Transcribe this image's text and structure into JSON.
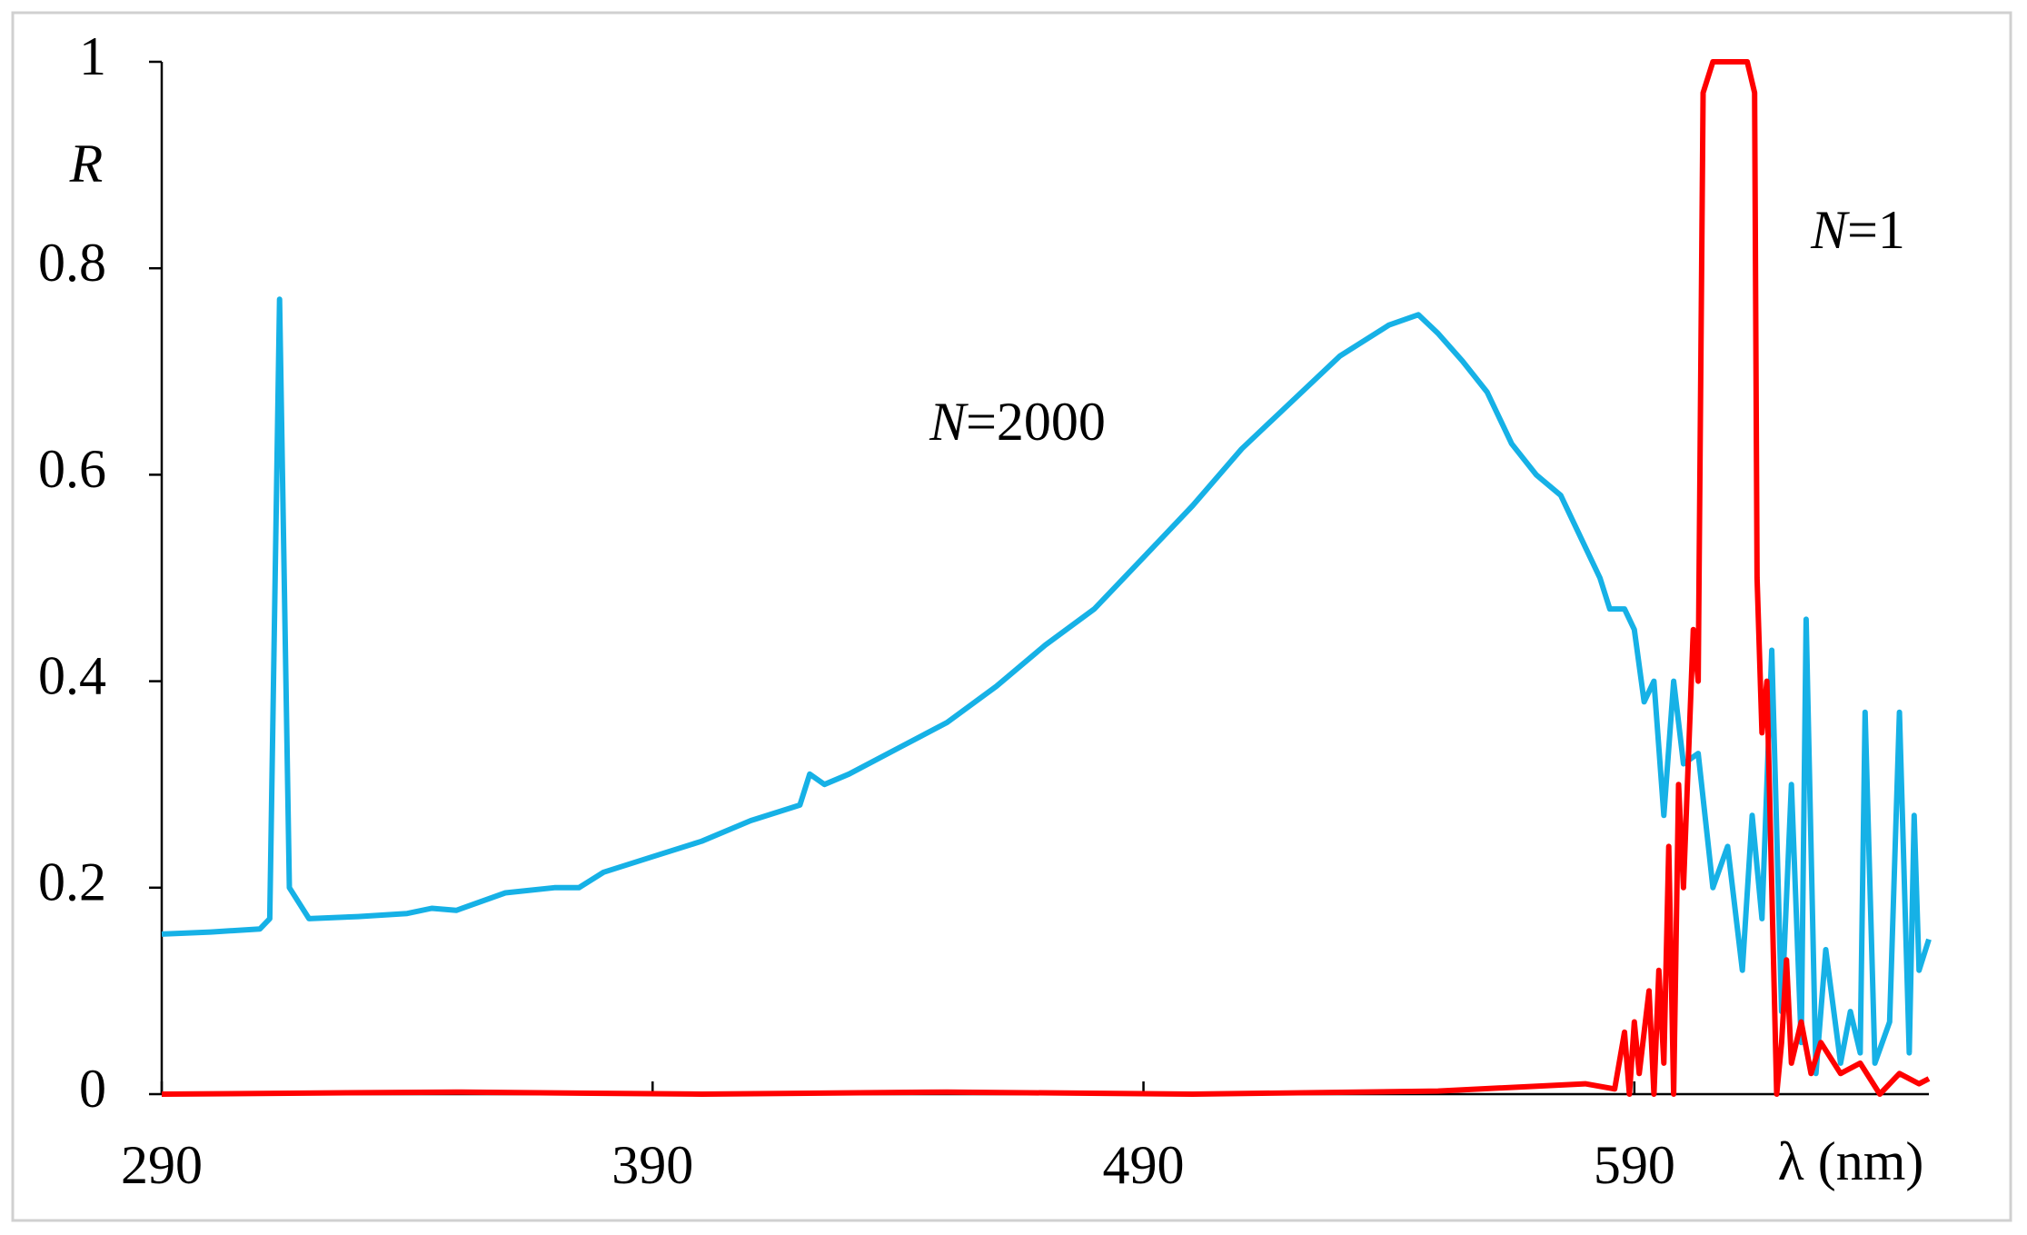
{
  "chart_data": {
    "type": "line",
    "y_label": "R",
    "x_label": "λ (nm)",
    "annotations": [
      "N=2000",
      "N=1"
    ],
    "xlim": [
      290,
      650
    ],
    "ylim": [
      0,
      1
    ],
    "xticks": [
      290,
      390,
      490,
      590
    ],
    "yticks": [
      0,
      0.2,
      0.4,
      0.6,
      0.8,
      1
    ],
    "grid": false,
    "series": [
      {
        "name": "N=2000",
        "color": "#16b1e6",
        "x": [
          290,
          300,
          310,
          312,
          314,
          316,
          320,
          330,
          340,
          345,
          350,
          360,
          370,
          375,
          380,
          390,
          400,
          410,
          420,
          422,
          425,
          430,
          440,
          450,
          460,
          470,
          480,
          490,
          500,
          510,
          520,
          530,
          540,
          546,
          550,
          555,
          560,
          565,
          570,
          575,
          580,
          583,
          585,
          588,
          590,
          592,
          594,
          596,
          598,
          600,
          603,
          606,
          609,
          612,
          614,
          616,
          618,
          620,
          622,
          624,
          625,
          627,
          629,
          632,
          634,
          636,
          637,
          639,
          642,
          644,
          646,
          647,
          648,
          650
        ],
        "values": [
          0.155,
          0.157,
          0.16,
          0.17,
          0.77,
          0.2,
          0.17,
          0.172,
          0.175,
          0.18,
          0.178,
          0.195,
          0.2,
          0.2,
          0.215,
          0.23,
          0.245,
          0.265,
          0.28,
          0.31,
          0.3,
          0.31,
          0.335,
          0.36,
          0.395,
          0.435,
          0.47,
          0.52,
          0.57,
          0.625,
          0.67,
          0.715,
          0.745,
          0.755,
          0.737,
          0.71,
          0.68,
          0.63,
          0.6,
          0.58,
          0.53,
          0.5,
          0.47,
          0.47,
          0.45,
          0.38,
          0.4,
          0.27,
          0.4,
          0.32,
          0.33,
          0.2,
          0.24,
          0.12,
          0.27,
          0.17,
          0.43,
          0.08,
          0.3,
          0.05,
          0.46,
          0.02,
          0.14,
          0.03,
          0.08,
          0.04,
          0.37,
          0.03,
          0.07,
          0.37,
          0.04,
          0.27,
          0.12,
          0.15
        ]
      },
      {
        "name": "N=1",
        "color": "#ff0000",
        "x": [
          290,
          350,
          400,
          450,
          500,
          550,
          580,
          586,
          588,
          589,
          590,
          591,
          593,
          594,
          595,
          596,
          597,
          598,
          599,
          600,
          602,
          603,
          604,
          606,
          613,
          614.5,
          615,
          616,
          617,
          618,
          619,
          620,
          621,
          622,
          624,
          626,
          628,
          632,
          636,
          640,
          644,
          648,
          650
        ],
        "values": [
          0,
          0.002,
          0,
          0.002,
          0,
          0.003,
          0.01,
          0.005,
          0.06,
          0,
          0.07,
          0.02,
          0.1,
          0,
          0.12,
          0.03,
          0.24,
          0,
          0.3,
          0.2,
          0.45,
          0.4,
          0.97,
          1,
          1,
          0.97,
          0.5,
          0.35,
          0.4,
          0.2,
          0,
          0.05,
          0.13,
          0.03,
          0.07,
          0.02,
          0.05,
          0.02,
          0.03,
          0,
          0.02,
          0.01,
          0.015
        ]
      }
    ]
  }
}
